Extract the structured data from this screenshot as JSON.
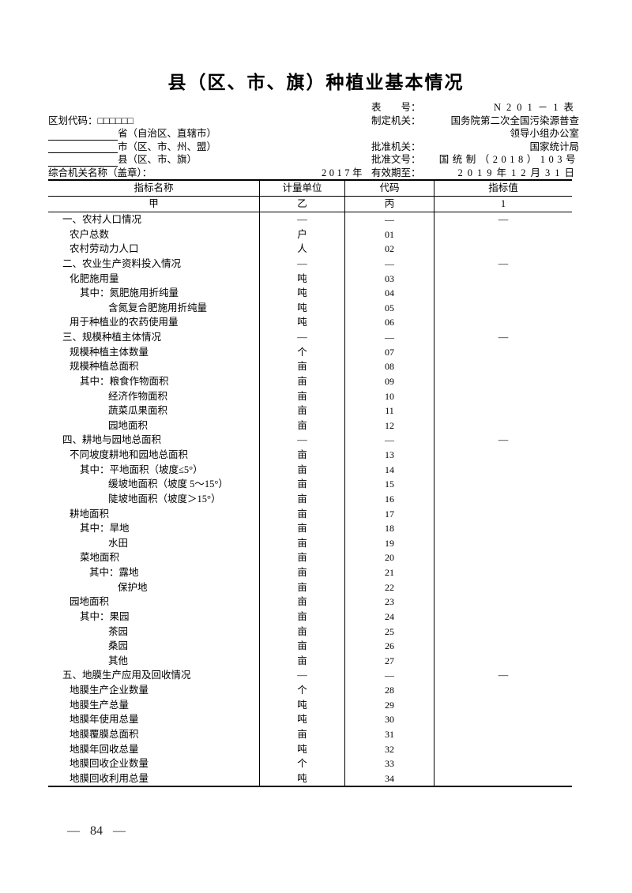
{
  "title": "县（区、市、旗）种植业基本情况",
  "header": {
    "form_no_label": "表　　号：",
    "form_no": "N201－1表",
    "division_code_label": "区划代码：□□□□□□",
    "issuer_label": "制定机关：",
    "issuer_line1": "国务院第二次全国污染源普查",
    "issuer_line2": "领导小组办公室",
    "province_suffix": "省（自治区、直辖市）",
    "city_suffix": "市（区、市、州、盟）",
    "county_suffix": "县（区、市、旗）",
    "approver_label": "批准机关：",
    "approver": "国家统计局",
    "doc_no_label": "批准文号：",
    "doc_no": "国统制（2018）103号",
    "org_label": "综合机关名称（盖章）：",
    "year": "2017年",
    "valid_label": "有效期至：",
    "valid_until": "2019年12月31日"
  },
  "table": {
    "columns": [
      "指标名称",
      "计量单位",
      "代码",
      "指标值"
    ],
    "subheaders": [
      "甲",
      "乙",
      "丙",
      "1"
    ],
    "rows": [
      {
        "label": "一、农村人口情况",
        "indent": 0,
        "unit": "—",
        "code": "—",
        "value": "—"
      },
      {
        "label": "农户总数",
        "indent": 1,
        "unit": "户",
        "code": "01",
        "value": ""
      },
      {
        "label": "农村劳动力人口",
        "indent": 1,
        "unit": "人",
        "code": "02",
        "value": ""
      },
      {
        "label": "二、农业生产资料投入情况",
        "indent": 0,
        "unit": "—",
        "code": "—",
        "value": "—"
      },
      {
        "label": "化肥施用量",
        "indent": 1,
        "unit": "吨",
        "code": "03",
        "value": ""
      },
      {
        "label": "其中：氮肥施用折纯量",
        "indent": 2,
        "unit": "吨",
        "code": "04",
        "value": ""
      },
      {
        "label": "含氮复合肥施用折纯量",
        "indent": 3,
        "unit": "吨",
        "code": "05",
        "value": ""
      },
      {
        "label": "用于种植业的农药使用量",
        "indent": 1,
        "unit": "吨",
        "code": "06",
        "value": ""
      },
      {
        "label": "三、规模种植主体情况",
        "indent": 0,
        "unit": "—",
        "code": "—",
        "value": "—"
      },
      {
        "label": "规模种植主体数量",
        "indent": 1,
        "unit": "个",
        "code": "07",
        "value": ""
      },
      {
        "label": "规模种植总面积",
        "indent": 1,
        "unit": "亩",
        "code": "08",
        "value": ""
      },
      {
        "label": "其中：粮食作物面积",
        "indent": 2,
        "unit": "亩",
        "code": "09",
        "value": ""
      },
      {
        "label": "经济作物面积",
        "indent": 3,
        "unit": "亩",
        "code": "10",
        "value": ""
      },
      {
        "label": "蔬菜瓜果面积",
        "indent": 3,
        "unit": "亩",
        "code": "11",
        "value": ""
      },
      {
        "label": "园地面积",
        "indent": 3,
        "unit": "亩",
        "code": "12",
        "value": ""
      },
      {
        "label": "四、耕地与园地总面积",
        "indent": 0,
        "unit": "—",
        "code": "—",
        "value": "—"
      },
      {
        "label": "不同坡度耕地和园地总面积",
        "indent": 1,
        "unit": "亩",
        "code": "13",
        "value": ""
      },
      {
        "label": "其中：平地面积（坡度≤5°）",
        "indent": 2,
        "unit": "亩",
        "code": "14",
        "value": ""
      },
      {
        "label": "缓坡地面积（坡度 5～15°）",
        "indent": 3,
        "unit": "亩",
        "code": "15",
        "value": ""
      },
      {
        "label": "陡坡地面积（坡度＞15°）",
        "indent": 3,
        "unit": "亩",
        "code": "16",
        "value": ""
      },
      {
        "label": "耕地面积",
        "indent": 1,
        "unit": "亩",
        "code": "17",
        "value": ""
      },
      {
        "label": "其中：旱地",
        "indent": 2,
        "unit": "亩",
        "code": "18",
        "value": ""
      },
      {
        "label": "水田",
        "indent": 3,
        "unit": "亩",
        "code": "19",
        "value": ""
      },
      {
        "label": "菜地面积",
        "indent": 2,
        "unit": "亩",
        "code": "20",
        "value": ""
      },
      {
        "label": "其中：露地",
        "indent": 4,
        "unit": "亩",
        "code": "21",
        "value": ""
      },
      {
        "label": "保护地",
        "indent": 5,
        "unit": "亩",
        "code": "22",
        "value": ""
      },
      {
        "label": "园地面积",
        "indent": 1,
        "unit": "亩",
        "code": "23",
        "value": ""
      },
      {
        "label": "其中：果园",
        "indent": 2,
        "unit": "亩",
        "code": "24",
        "value": ""
      },
      {
        "label": "茶园",
        "indent": 3,
        "unit": "亩",
        "code": "25",
        "value": ""
      },
      {
        "label": "桑园",
        "indent": 3,
        "unit": "亩",
        "code": "26",
        "value": ""
      },
      {
        "label": "其他",
        "indent": 3,
        "unit": "亩",
        "code": "27",
        "value": ""
      },
      {
        "label": "五、地膜生产应用及回收情况",
        "indent": 0,
        "unit": "—",
        "code": "—",
        "value": "—"
      },
      {
        "label": "地膜生产企业数量",
        "indent": 1,
        "unit": "个",
        "code": "28",
        "value": ""
      },
      {
        "label": "地膜生产总量",
        "indent": 1,
        "unit": "吨",
        "code": "29",
        "value": ""
      },
      {
        "label": "地膜年使用总量",
        "indent": 1,
        "unit": "吨",
        "code": "30",
        "value": ""
      },
      {
        "label": "地膜覆膜总面积",
        "indent": 1,
        "unit": "亩",
        "code": "31",
        "value": ""
      },
      {
        "label": "地膜年回收总量",
        "indent": 1,
        "unit": "吨",
        "code": "32",
        "value": ""
      },
      {
        "label": "地膜回收企业数量",
        "indent": 1,
        "unit": "个",
        "code": "33",
        "value": ""
      },
      {
        "label": "地膜回收利用总量",
        "indent": 1,
        "unit": "吨",
        "code": "34",
        "value": ""
      }
    ]
  },
  "page_number": {
    "dash_left": "—",
    "number": "84",
    "dash_right": "—"
  }
}
